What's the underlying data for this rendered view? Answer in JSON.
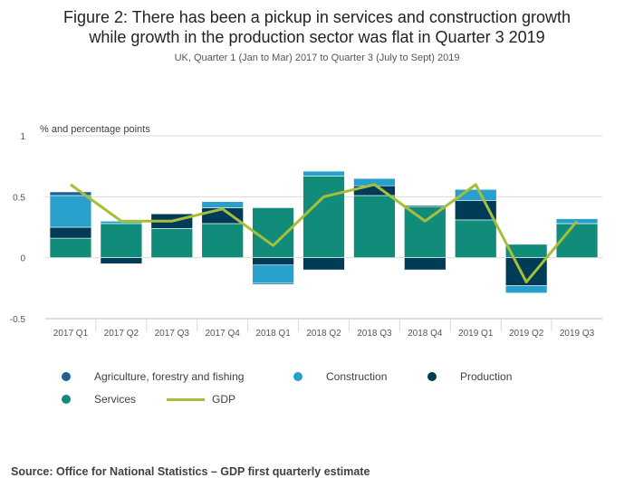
{
  "title_line1": "Figure 2: There has been a pickup in services and construction growth",
  "title_line2": "while growth in the production sector was flat in Quarter 3 2019",
  "subtitle": "UK, Quarter 1 (Jan to Mar) 2017 to Quarter 3 (July to Sept) 2019",
  "source": "Source: Office for National Statistics – GDP first quarterly estimate",
  "colors": {
    "agriculture": "#206095",
    "construction": "#27a0cc",
    "production": "#003c57",
    "services": "#118c7b",
    "gdp": "#a8bd3a"
  },
  "chart_data": {
    "type": "bar",
    "stacked": true,
    "ylabel": "% and percentage points",
    "ylim": [
      -0.5,
      1
    ],
    "yticks": [
      -0.5,
      0,
      0.5,
      1
    ],
    "ytick_labels": [
      "-0.5",
      "0",
      "0.5",
      "1"
    ],
    "grid": true,
    "legend_position": "bottom",
    "categories": [
      "2017 Q1",
      "2017 Q2",
      "2017 Q3",
      "2017 Q4",
      "2018 Q1",
      "2018 Q2",
      "2018 Q3",
      "2018 Q4",
      "2019 Q1",
      "2019 Q2",
      "2019 Q3"
    ],
    "series": [
      {
        "name": "Agriculture, forestry and fishing",
        "values": [
          0.03,
          0.0,
          0.0,
          0.0,
          -0.01,
          0.0,
          0.0,
          0.01,
          0.0,
          0.0,
          0.0
        ]
      },
      {
        "name": "Construction",
        "values": [
          0.26,
          0.02,
          0.0,
          0.05,
          -0.15,
          0.04,
          0.06,
          0.0,
          0.09,
          -0.06,
          0.04
        ]
      },
      {
        "name": "Production",
        "values": [
          0.09,
          -0.05,
          0.12,
          0.13,
          -0.06,
          -0.1,
          0.08,
          -0.1,
          0.16,
          -0.23,
          0.0
        ]
      },
      {
        "name": "Services",
        "values": [
          0.16,
          0.28,
          0.24,
          0.28,
          0.41,
          0.67,
          0.51,
          0.42,
          0.31,
          0.11,
          0.28
        ]
      }
    ],
    "line_series": {
      "name": "GDP",
      "values": [
        0.6,
        0.3,
        0.3,
        0.4,
        0.1,
        0.5,
        0.6,
        0.3,
        0.6,
        -0.2,
        0.3
      ]
    }
  }
}
